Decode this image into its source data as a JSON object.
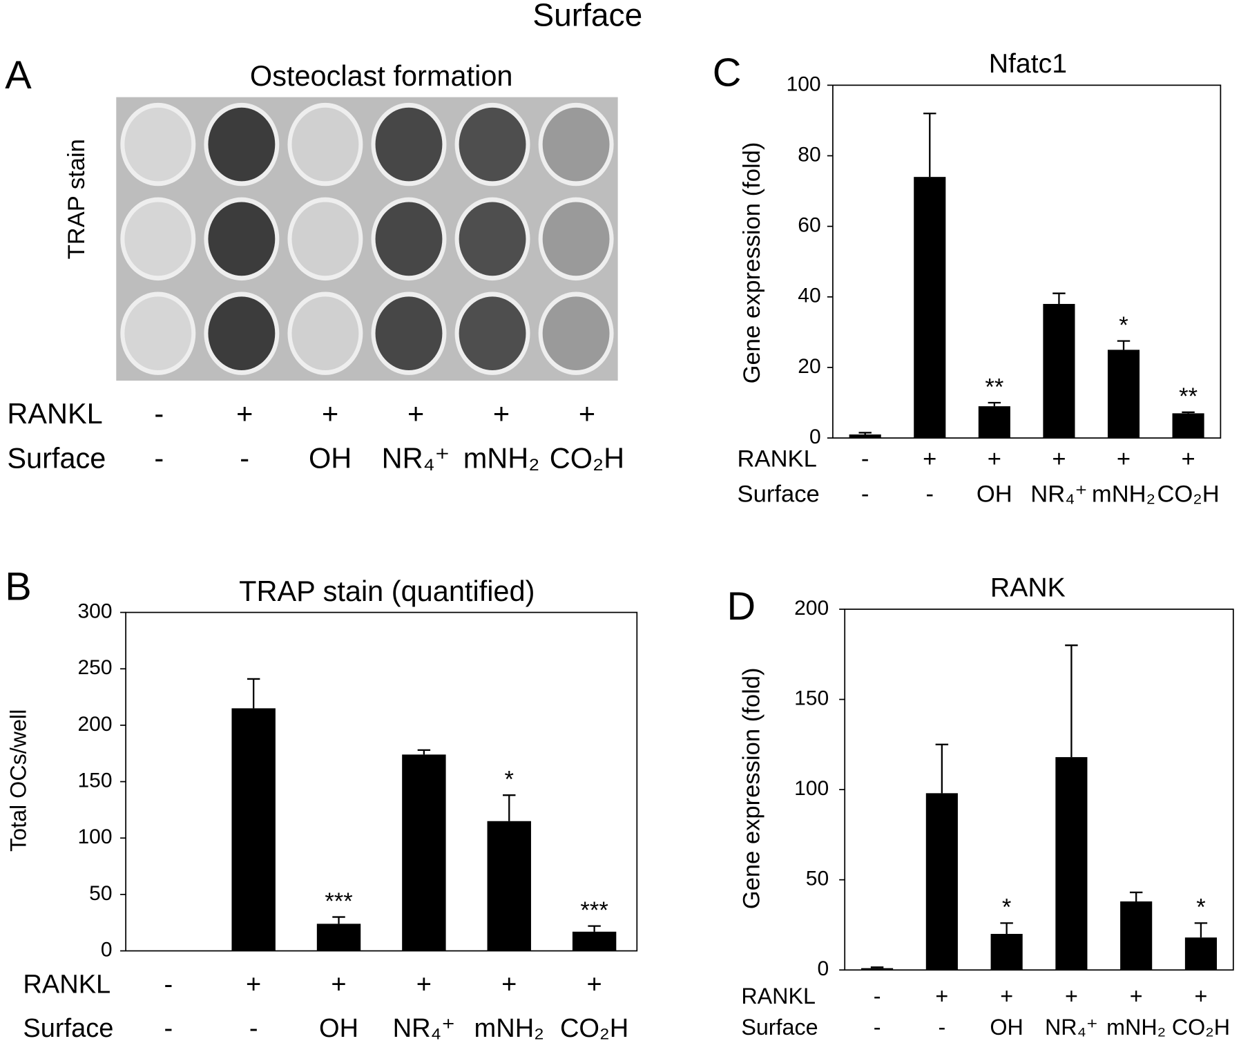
{
  "title": "Surface",
  "chart_data": [
    {
      "type": "image",
      "panel_label": "A",
      "title": "Osteoclast formation",
      "ylabel": "TRAP stain",
      "treatment_rows": [
        {
          "name": "RANKL",
          "labels": [
            "-",
            "+",
            "+",
            "+",
            "+",
            "+"
          ]
        },
        {
          "name": "Surface",
          "labels": [
            "-",
            "-",
            "OH",
            "NR₄⁺",
            "mNH₂",
            "CO₂H"
          ]
        }
      ]
    },
    {
      "type": "bar",
      "panel_label": "B",
      "title": "TRAP stain (quantified)",
      "ylabel": "Total OCs/well",
      "values": [
        0,
        215,
        24,
        174,
        115,
        17
      ],
      "errors": [
        null,
        26,
        6,
        4,
        23,
        5
      ],
      "annotations": [
        null,
        null,
        "***",
        null,
        "*",
        "***"
      ],
      "color": "#000000",
      "ylim": [
        0,
        300
      ],
      "yticks": [
        0,
        50,
        100,
        150,
        200,
        250,
        300
      ],
      "treatment_rows": [
        {
          "name": "RANKL",
          "labels": [
            "-",
            "+",
            "+",
            "+",
            "+",
            "+"
          ]
        },
        {
          "name": "Surface",
          "labels": [
            "-",
            "-",
            "OH",
            "NR₄⁺",
            "mNH₂",
            "CO₂H"
          ]
        }
      ]
    },
    {
      "type": "bar",
      "panel_label": "C",
      "title": "Nfatc1",
      "ylabel": "Gene expression (fold)",
      "values": [
        1,
        74,
        9,
        38,
        25,
        7
      ],
      "errors": [
        0.5,
        18,
        1,
        3,
        2.5,
        0.3
      ],
      "annotations": [
        null,
        null,
        "**",
        null,
        "*",
        "**"
      ],
      "color": "#000000",
      "ylim": [
        0,
        100
      ],
      "yticks": [
        0,
        20,
        40,
        60,
        80,
        100
      ],
      "treatment_rows": [
        {
          "name": "RANKL",
          "labels": [
            "-",
            "+",
            "+",
            "+",
            "+",
            "+"
          ]
        },
        {
          "name": "Surface",
          "labels": [
            "-",
            "-",
            "OH",
            "NR₄⁺",
            "mNH₂",
            "CO₂H"
          ]
        }
      ]
    },
    {
      "type": "bar",
      "panel_label": "D",
      "title": "RANK",
      "ylabel": "Gene expression (fold)",
      "values": [
        1,
        98,
        20,
        118,
        38,
        18
      ],
      "errors": [
        0.5,
        27,
        6,
        62,
        5,
        8
      ],
      "annotations": [
        null,
        null,
        "*",
        null,
        null,
        "*"
      ],
      "color": "#000000",
      "ylim": [
        0,
        200
      ],
      "yticks": [
        0,
        50,
        100,
        150,
        200
      ],
      "treatment_rows": [
        {
          "name": "RANKL",
          "labels": [
            "-",
            "+",
            "+",
            "+",
            "+",
            "+"
          ]
        },
        {
          "name": "Surface",
          "labels": [
            "-",
            "-",
            "OH",
            "NR₄⁺",
            "mNH₂",
            "CO₂H"
          ]
        }
      ]
    }
  ]
}
